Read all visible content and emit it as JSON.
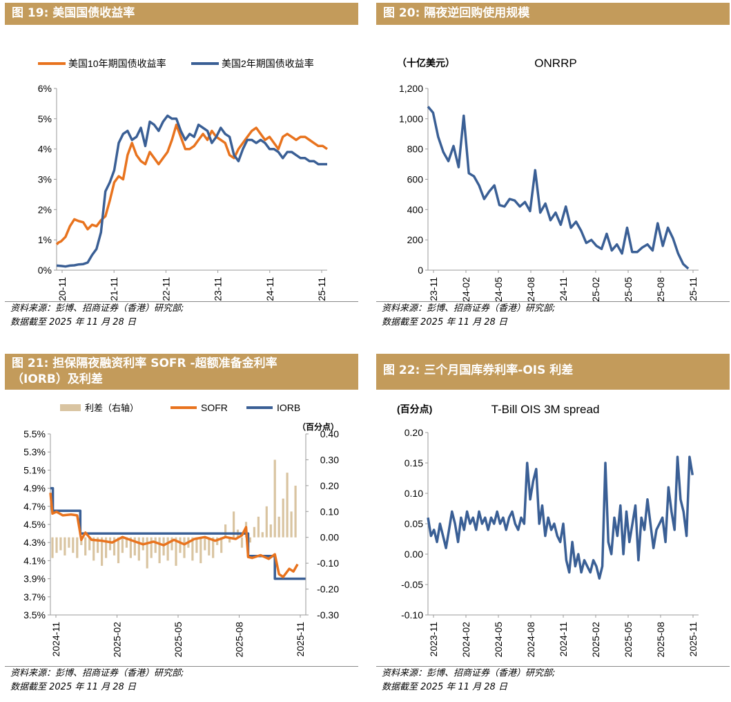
{
  "source_line1": "资料来源：彭博、招商证券（香港）研究部;",
  "source_line2": "数据截至 2025 年 11 月 28 日",
  "colors": {
    "header": "#c39b5b",
    "orange": "#e8731e",
    "blue": "#3a5f95",
    "tan": "#d9c4a1"
  },
  "chart_data": [
    {
      "id": "fig19",
      "type": "line",
      "title": "图 19:  美国国债收益率",
      "legend": [
        "美国10年期国债收益率",
        "美国2年期国债收益率"
      ],
      "ylabel": "",
      "ylim": [
        0,
        6
      ],
      "yticks": [
        "0%",
        "1%",
        "2%",
        "3%",
        "4%",
        "5%",
        "6%"
      ],
      "xticks": [
        "2020-11",
        "2021-11",
        "2022-11",
        "2023-11",
        "2024-11",
        "2025-11"
      ],
      "series": [
        {
          "name": "美国10年期国债收益率",
          "x": [
            0,
            0.5,
            1,
            2,
            3,
            4,
            5,
            6,
            7,
            8,
            9,
            10,
            11,
            12,
            13,
            14,
            15,
            16,
            17,
            18,
            19,
            20,
            21,
            22,
            23,
            24,
            25,
            26,
            27,
            28,
            29,
            30,
            31,
            32,
            33,
            34,
            35,
            36,
            37,
            38,
            39,
            40,
            41,
            42,
            43,
            44,
            45,
            46,
            47,
            48,
            49,
            50,
            51,
            52,
            53,
            54,
            55,
            56,
            57,
            58,
            59,
            60,
            61
          ],
          "values": [
            0.85,
            0.92,
            0.95,
            1.1,
            1.45,
            1.68,
            1.62,
            1.58,
            1.35,
            1.5,
            1.45,
            1.65,
            1.78,
            2.3,
            2.9,
            3.1,
            3.0,
            3.8,
            4.2,
            3.8,
            3.6,
            3.5,
            3.9,
            3.7,
            3.5,
            3.7,
            3.9,
            4.3,
            4.8,
            4.4,
            4.0,
            4.0,
            4.1,
            4.3,
            4.5,
            4.3,
            4.6,
            4.4,
            4.3,
            4.2,
            3.8,
            3.7,
            4.0,
            4.2,
            4.4,
            4.6,
            4.7,
            4.5,
            4.3,
            4.4,
            4.2,
            4.0,
            4.4,
            4.5,
            4.4,
            4.3,
            4.4,
            4.4,
            4.3,
            4.2,
            4.1,
            4.1,
            4.0
          ]
        },
        {
          "name": "美国2年期国债收益率",
          "x": [
            0,
            1,
            2,
            3,
            4,
            5,
            6,
            7,
            8,
            9,
            10,
            11,
            12,
            13,
            14,
            15,
            16,
            17,
            18,
            19,
            20,
            21,
            22,
            23,
            24,
            25,
            26,
            27,
            28,
            29,
            30,
            31,
            32,
            33,
            34,
            35,
            36,
            37,
            38,
            39,
            40,
            41,
            42,
            43,
            44,
            45,
            46,
            47,
            48,
            49,
            50,
            51,
            52,
            53,
            54,
            55,
            56,
            57,
            58,
            59,
            60,
            61
          ],
          "values": [
            0.15,
            0.14,
            0.12,
            0.15,
            0.16,
            0.19,
            0.2,
            0.25,
            0.5,
            0.7,
            1.25,
            2.6,
            2.9,
            3.3,
            4.2,
            4.5,
            4.6,
            4.3,
            4.4,
            4.7,
            4.1,
            4.9,
            4.8,
            4.6,
            4.9,
            5.1,
            5.0,
            5.0,
            4.6,
            4.3,
            4.5,
            4.4,
            4.8,
            4.7,
            4.6,
            4.2,
            4.4,
            4.7,
            4.5,
            4.4,
            3.8,
            3.6,
            4.0,
            4.3,
            4.3,
            4.2,
            4.3,
            4.2,
            4.0,
            4.0,
            3.9,
            3.7,
            3.9,
            3.9,
            3.8,
            3.7,
            3.7,
            3.6,
            3.6,
            3.5,
            3.5,
            3.5
          ]
        }
      ]
    },
    {
      "id": "fig20",
      "type": "line",
      "title": "图 20:  隔夜逆回购使用规模",
      "unit": "（十亿美元）",
      "series_title": "ONRRP",
      "ylim": [
        0,
        1200
      ],
      "yticks": [
        "0",
        "200",
        "400",
        "600",
        "800",
        "1,000",
        "1,200"
      ],
      "xticks": [
        "2023-11",
        "2024-02",
        "2024-05",
        "2024-08",
        "2024-11",
        "2025-02",
        "2025-05",
        "2025-08",
        "2025-11"
      ],
      "series": [
        {
          "name": "ONRRP",
          "x": [
            0,
            0.5,
            1,
            1.5,
            2,
            2.5,
            3,
            3.5,
            4,
            4.5,
            5,
            5.5,
            6,
            6.5,
            7,
            7.5,
            8,
            8.5,
            9,
            9.5,
            10,
            10.5,
            11,
            11.5,
            12,
            12.5,
            13,
            13.5,
            14,
            14.5,
            15,
            15.5,
            16,
            16.5,
            17,
            17.5,
            18,
            18.5,
            19,
            19.5,
            20,
            20.5,
            21,
            21.5,
            22,
            22.5,
            23,
            23.5,
            24,
            24.5,
            25,
            25.5
          ],
          "values": [
            1080,
            1040,
            880,
            780,
            720,
            820,
            680,
            1020,
            640,
            620,
            560,
            470,
            520,
            560,
            430,
            420,
            470,
            460,
            420,
            450,
            390,
            660,
            380,
            440,
            330,
            380,
            300,
            420,
            280,
            320,
            260,
            180,
            200,
            160,
            140,
            240,
            130,
            170,
            110,
            280,
            120,
            120,
            150,
            170,
            130,
            310,
            160,
            280,
            210,
            110,
            40,
            10
          ]
        }
      ]
    },
    {
      "id": "fig21",
      "type": "line",
      "title_line1": "图 21:  担保隔夜融资利率 SOFR -超额准备金利率",
      "title_line2": "（IORB）及利差",
      "legend": [
        "利差（右轴）",
        "SOFR",
        "IORB"
      ],
      "right_unit": "（百分点）",
      "ylim": [
        3.5,
        5.5
      ],
      "yticks": [
        "3.5%",
        "3.7%",
        "3.9%",
        "4.1%",
        "4.3%",
        "4.5%",
        "4.7%",
        "4.9%",
        "5.1%",
        "5.3%",
        "5.5%"
      ],
      "y2lim": [
        -0.3,
        0.4
      ],
      "y2ticks": [
        "-0.30",
        "-0.20",
        "-0.10",
        "0.00",
        "0.10",
        "0.20",
        "0.30",
        "0.40"
      ],
      "xticks": [
        "2024-11",
        "2025-02",
        "2025-05",
        "2025-08",
        "2025-11"
      ],
      "series": [
        {
          "name": "IORB",
          "x": [
            0,
            0.12,
            0.12,
            1.45,
            1.45,
            9.6,
            9.6,
            10.9,
            10.9,
            12.4
          ],
          "values": [
            4.9,
            4.9,
            4.65,
            4.65,
            4.4,
            4.4,
            4.15,
            4.15,
            3.9,
            3.9
          ]
        },
        {
          "name": "SOFR",
          "x": [
            0,
            0.1,
            0.3,
            0.6,
            1.0,
            1.3,
            1.5,
            1.7,
            2.0,
            2.5,
            3.0,
            3.5,
            4.0,
            4.5,
            5.0,
            5.5,
            6.0,
            6.5,
            7.0,
            7.5,
            8.0,
            8.5,
            9.0,
            9.3,
            9.5,
            9.6,
            9.8,
            10.2,
            10.6,
            10.9,
            11.1,
            11.3,
            11.6,
            11.8,
            12.0
          ],
          "values": [
            4.85,
            4.62,
            4.64,
            4.6,
            4.61,
            4.6,
            4.33,
            4.41,
            4.33,
            4.32,
            4.3,
            4.36,
            4.32,
            4.28,
            4.31,
            4.27,
            4.33,
            4.28,
            4.34,
            4.36,
            4.32,
            4.36,
            4.34,
            4.38,
            4.47,
            4.14,
            4.13,
            4.16,
            4.12,
            4.17,
            3.95,
            3.92,
            4.01,
            3.98,
            4.06
          ]
        }
      ],
      "bars": {
        "name": "利差（右轴）",
        "x": [
          0.1,
          0.3,
          0.5,
          0.7,
          0.9,
          1.1,
          1.3,
          1.5,
          1.7,
          1.9,
          2.1,
          2.3,
          2.5,
          2.7,
          2.9,
          3.1,
          3.3,
          3.5,
          3.7,
          3.9,
          4.1,
          4.3,
          4.5,
          4.7,
          4.9,
          5.1,
          5.3,
          5.5,
          5.7,
          5.9,
          6.1,
          6.3,
          6.5,
          6.7,
          6.9,
          7.1,
          7.3,
          7.5,
          7.7,
          7.9,
          8.1,
          8.3,
          8.5,
          8.7,
          8.9,
          9.1,
          9.3,
          9.5,
          9.7,
          9.9,
          10.1,
          10.3,
          10.5,
          10.7,
          10.9,
          11.1,
          11.3,
          11.5,
          11.7,
          11.9
        ],
        "values": [
          -0.08,
          -0.06,
          -0.05,
          -0.07,
          -0.04,
          -0.06,
          -0.08,
          -0.03,
          -0.07,
          -0.05,
          -0.09,
          -0.06,
          -0.11,
          -0.08,
          -0.05,
          -0.07,
          -0.1,
          -0.06,
          -0.04,
          -0.08,
          -0.07,
          -0.09,
          -0.05,
          -0.12,
          -0.08,
          -0.06,
          -0.1,
          -0.07,
          -0.09,
          -0.05,
          -0.11,
          -0.06,
          -0.08,
          -0.04,
          -0.09,
          -0.06,
          -0.1,
          -0.05,
          -0.07,
          -0.08,
          -0.03,
          -0.06,
          0.05,
          -0.02,
          0.1,
          0.03,
          -0.04,
          0.06,
          -0.02,
          0.04,
          0.08,
          0.02,
          0.12,
          0.05,
          0.3,
          0.08,
          0.15,
          0.25,
          0.1,
          0.2
        ]
      }
    },
    {
      "id": "fig22",
      "type": "line",
      "title": "图 22:  三个月国库券利率-OIS 利差",
      "unit": "(百分点)",
      "series_title": "T-Bill OIS 3M spread",
      "ylim": [
        -0.1,
        0.2
      ],
      "yticks": [
        "-0.10",
        "-0.05",
        "0.00",
        "0.05",
        "0.10",
        "0.15",
        "0.20"
      ],
      "xticks": [
        "2023-11",
        "2024-02",
        "2024-05",
        "2024-08",
        "2024-11",
        "2025-02",
        "2025-05",
        "2025-08",
        "2025-11"
      ],
      "series": [
        {
          "name": "T-Bill OIS 3M spread",
          "x": [
            0,
            0.3,
            0.6,
            0.9,
            1.2,
            1.5,
            1.8,
            2.1,
            2.4,
            2.7,
            3.0,
            3.3,
            3.6,
            3.9,
            4.2,
            4.5,
            4.8,
            5.1,
            5.4,
            5.7,
            6.0,
            6.3,
            6.6,
            6.9,
            7.2,
            7.5,
            7.8,
            8.1,
            8.4,
            8.7,
            9.0,
            9.3,
            9.6,
            9.9,
            10.2,
            10.5,
            10.8,
            11.1,
            11.4,
            11.7,
            12.0,
            12.3,
            12.6,
            12.9,
            13.2,
            13.5,
            13.8,
            14.1,
            14.4,
            14.7,
            15.0,
            15.3,
            15.6,
            15.9,
            16.2,
            16.5,
            16.8,
            17.1,
            17.4,
            17.7,
            18.0,
            18.3,
            18.6,
            18.9,
            19.2,
            19.5,
            19.8,
            20.1,
            20.4,
            20.7,
            21.0,
            21.3,
            21.6,
            21.9,
            22.2,
            22.5,
            22.8,
            23.1,
            23.4,
            23.7,
            24.0,
            24.3,
            24.6,
            24.9,
            25.2,
            25.5,
            25.8,
            26.1,
            26.4
          ],
          "values": [
            0.06,
            0.03,
            0.04,
            0.02,
            0.05,
            0.03,
            0.01,
            0.04,
            0.07,
            0.05,
            0.02,
            0.06,
            0.04,
            0.07,
            0.05,
            0.06,
            0.04,
            0.07,
            0.05,
            0.06,
            0.04,
            0.06,
            0.05,
            0.07,
            0.05,
            0.06,
            0.04,
            0.06,
            0.07,
            0.05,
            0.04,
            0.06,
            0.05,
            0.15,
            0.09,
            0.12,
            0.14,
            0.05,
            0.08,
            0.03,
            0.06,
            0.04,
            0.05,
            0.03,
            0.02,
            0.05,
            -0.01,
            -0.03,
            0.02,
            -0.02,
            0.0,
            -0.03,
            -0.01,
            -0.02,
            -0.03,
            -0.01,
            -0.02,
            -0.04,
            -0.02,
            0.15,
            0.02,
            0.0,
            0.06,
            0.03,
            0.08,
            0.0,
            0.07,
            0.02,
            0.05,
            0.08,
            -0.01,
            0.06,
            0.04,
            0.09,
            0.05,
            0.01,
            0.04,
            0.05,
            0.06,
            0.02,
            0.11,
            0.07,
            0.04,
            0.16,
            0.09,
            0.07,
            0.03,
            0.16,
            0.13
          ]
        }
      ]
    }
  ]
}
